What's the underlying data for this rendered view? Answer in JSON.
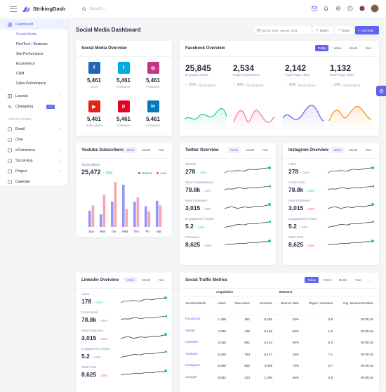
{
  "app": {
    "name": "StrikingDash",
    "search_placeholder": "Search..."
  },
  "sidebar": {
    "dashboard_label": "Dashboard",
    "sub_items": [
      "Social Media",
      "FineTech / Business",
      "Site Performance",
      "Ecommerce",
      "CRM",
      "Sales Performance"
    ],
    "layouts_label": "Layouts",
    "changelog_label": "Changelog",
    "changelog_badge": "1.0.0",
    "section_applications": "APPLICATIONS",
    "apps": [
      {
        "label": "Email",
        "icon": "mail-icon"
      },
      {
        "label": "Chat",
        "icon": "chat-icon"
      },
      {
        "label": "eCommerce",
        "icon": "cart-icon"
      },
      {
        "label": "Social App",
        "icon": "social-icon"
      },
      {
        "label": "Project",
        "icon": "project-icon"
      },
      {
        "label": "Calendar",
        "icon": "calendar-icon"
      }
    ]
  },
  "header": {
    "title": "Social Media Dashboard",
    "date_range": "Oct 30, 2019 - Nov 30, 2019",
    "export_label": "Export",
    "share_label": "Share",
    "add_new_label": "Add New"
  },
  "social_overview": {
    "title": "Social Media Overview",
    "items": [
      {
        "icon": "facebook-icon",
        "letter": "f",
        "color": "#2366b8",
        "value": "5,461",
        "label": "Likes"
      },
      {
        "icon": "twitter-icon",
        "letter": "t",
        "color": "#00abe4",
        "value": "5,461",
        "label": "Followers"
      },
      {
        "icon": "instagram-icon",
        "letter": "◎",
        "color": "#c13584",
        "value": "5,461",
        "label": "Followers"
      },
      {
        "icon": "youtube-icon",
        "letter": "▶",
        "color": "#e62117",
        "value": "5,461",
        "label": "Subscribers"
      },
      {
        "icon": "pinterest-icon",
        "letter": "p",
        "color": "#e60023",
        "value": "5,461",
        "label": "Followers"
      },
      {
        "icon": "linkedin-icon",
        "letter": "in",
        "color": "#007ab9",
        "value": "5,461",
        "label": "Followers"
      }
    ]
  },
  "facebook_overview": {
    "title": "Facebook Overview",
    "tabs": [
      "Today",
      "Week",
      "Month",
      "Year"
    ],
    "active_tab": "Today",
    "metrics": [
      {
        "value": "25,845",
        "label": "Engaged Users",
        "change": "25%",
        "dir": "up",
        "prev": "20,641 (prev)",
        "color": "#20c997"
      },
      {
        "value": "2,534",
        "label": "Page Impressions",
        "change": "40%",
        "dir": "up",
        "prev": "20,641 (prev)",
        "color": "#ff69a5"
      },
      {
        "value": "2,142",
        "label": "Total Page Likes",
        "change": "15%",
        "dir": "down",
        "prev": "20,641 (prev)",
        "color": "#5f63f2"
      },
      {
        "value": "1,132",
        "label": "New Page Likes",
        "change": "13%",
        "dir": "up",
        "prev": "20,641 (prev)",
        "color": "#fa8b0c"
      }
    ]
  },
  "youtube": {
    "title": "Youtube Subscribers",
    "tabs": [
      "Week",
      "Month",
      "Year"
    ],
    "active_tab": "Week",
    "subscribers_label": "Subscribers",
    "subscribers_value": "25,472",
    "change": "25%",
    "legend": [
      "Gained",
      "Lost"
    ]
  },
  "twitter": {
    "title": "Twitter Overview",
    "tabs": [
      "Week",
      "Month",
      "Year"
    ],
    "active_tab": "Week",
    "stats": [
      {
        "label": "Tweets",
        "value": "278",
        "change": "14%",
        "dir": "up"
      },
      {
        "label": "Tweet Impressions",
        "value": "78.8k",
        "change": "14%",
        "dir": "up"
      },
      {
        "label": "New Followers",
        "value": "3,015",
        "change": "14%",
        "dir": "down"
      },
      {
        "label": "Engagement Rates",
        "value": "5.2",
        "change": "14%",
        "dir": "up"
      },
      {
        "label": "Retweets",
        "value": "8,625",
        "change": "14%",
        "dir": "down"
      }
    ]
  },
  "instagram": {
    "title": "Instagram Overview",
    "tabs": [
      "Week",
      "Month",
      "Year"
    ],
    "active_tab": "Week",
    "stats": [
      {
        "label": "Likes",
        "value": "278",
        "change": "14%",
        "dir": "up"
      },
      {
        "label": "Comments",
        "value": "78.8k",
        "change": "14%",
        "dir": "up"
      },
      {
        "label": "New Followers",
        "value": "3,015",
        "change": "14%",
        "dir": "down"
      },
      {
        "label": "Engagement Rates",
        "value": "5.2",
        "change": "14%",
        "dir": "up"
      },
      {
        "label": "Total Post",
        "value": "8,625",
        "change": "14%",
        "dir": "down"
      }
    ]
  },
  "linkedin": {
    "title": "Linkedin Overview",
    "tabs": [
      "Week",
      "Month",
      "Year"
    ],
    "active_tab": "Week",
    "stats": [
      {
        "label": "Likes",
        "value": "178",
        "change": "14%",
        "dir": "up"
      },
      {
        "label": "Comments",
        "value": "78.8k",
        "change": "14%",
        "dir": "up"
      },
      {
        "label": "New Followers",
        "value": "3,015",
        "change": "14%",
        "dir": "down"
      },
      {
        "label": "Engagement Rates",
        "value": "5.2",
        "change": "14%",
        "dir": "up"
      },
      {
        "label": "Total Post",
        "value": "8,625",
        "change": "14%",
        "dir": "down"
      }
    ]
  },
  "traffic": {
    "title": "Social Traffic Metrics",
    "tabs": [
      "Today",
      "Week",
      "Month",
      "Year"
    ],
    "active_tab": "Today",
    "more_label": "...",
    "group_acquisition": "Acquisition",
    "group_behavior": "Behavior",
    "columns": [
      "Social Network",
      "Users",
      "New Users",
      "Sessions",
      "Bounce Rate",
      "Pages / Sessions",
      "Avg. Session Duration"
    ],
    "rows": [
      [
        "Facebook",
        "1,458",
        "452",
        "9,235",
        "25%",
        "3.9",
        "00:05:16"
      ],
      [
        "Twitter",
        "4,785",
        "428",
        "8,156",
        "-26%",
        "1.5",
        "00:05:16"
      ],
      [
        "Linkedin",
        "3,416",
        "851",
        "6,124",
        "56%",
        "5.3",
        "00:05:16"
      ],
      [
        "Youtube",
        "5,426",
        "753",
        "9,147",
        "15%",
        "7.1",
        "00:05:16"
      ],
      [
        "Instagram",
        "8,258",
        "852",
        "4,369",
        "75%",
        "2.7",
        "00:05:16"
      ],
      [
        "Google+",
        "9,632",
        "123",
        "1,256",
        "46%",
        "2.6",
        "00:05:16"
      ]
    ]
  },
  "chart_data": {
    "type": "bar",
    "categories": [
      "Sun",
      "Mon",
      "Tue",
      "Wed",
      "Thu",
      "Fri",
      "Sat"
    ],
    "series": [
      {
        "name": "Gained",
        "color": "#9395f7",
        "values": [
          18,
          14,
          28,
          47,
          28,
          23,
          29
        ]
      },
      {
        "name": "Lost",
        "color": "#f6a5b4",
        "values": [
          24,
          36,
          50,
          20,
          33,
          17,
          24
        ]
      }
    ],
    "ylim": [
      0,
      50
    ]
  }
}
